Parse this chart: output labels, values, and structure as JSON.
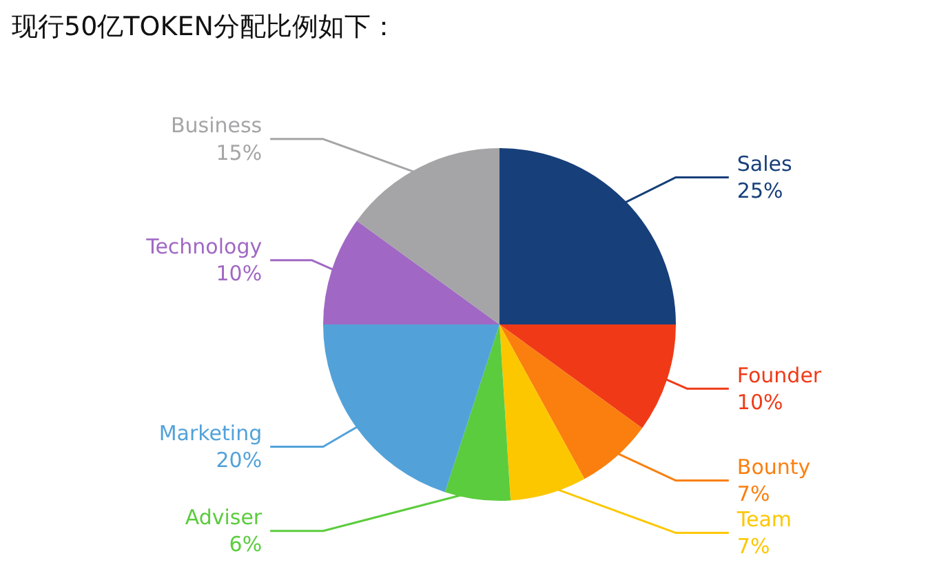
{
  "chart_data": {
    "type": "pie",
    "title": "现行50亿TOKEN分配比例如下：",
    "categories": [
      "Sales",
      "Founder",
      "Bounty",
      "Team",
      "Adviser",
      "Marketing",
      "Technology",
      "Business"
    ],
    "values": [
      25,
      10,
      7,
      7,
      6,
      20,
      10,
      15
    ],
    "value_labels": [
      "25%",
      "10%",
      "7%",
      "7%",
      "6%",
      "20%",
      "10%",
      "15%"
    ],
    "colors": [
      "#173f7a",
      "#f03a17",
      "#fa7f0e",
      "#fdc700",
      "#5bcc3d",
      "#52a2d9",
      "#a068c4",
      "#a5a5a7"
    ]
  }
}
